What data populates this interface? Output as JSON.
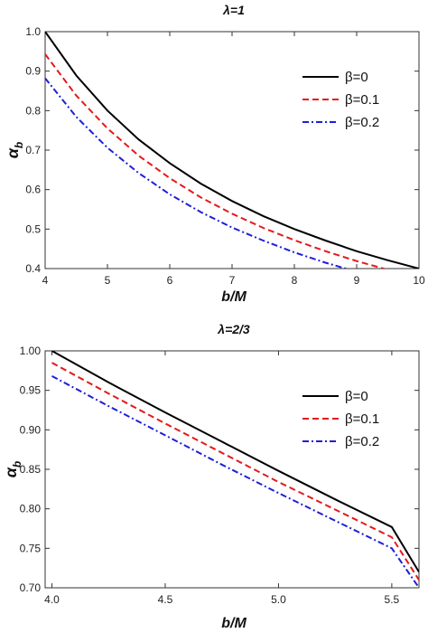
{
  "chart_data": [
    {
      "type": "line",
      "title": "λ=1",
      "xlabel": "b/M",
      "ylabel": "α_b",
      "ylabel_main": "α",
      "ylabel_sub": "b",
      "xlim": [
        4,
        10
      ],
      "ylim": [
        0.4,
        1.0
      ],
      "xticks": [
        4,
        5,
        6,
        7,
        8,
        9,
        10
      ],
      "yticks": [
        0.4,
        0.5,
        0.6,
        0.7,
        0.8,
        0.9,
        1.0
      ],
      "xtick_labels": [
        "4",
        "5",
        "6",
        "7",
        "8",
        "9",
        "10"
      ],
      "ytick_labels": [
        "0.4",
        "0.5",
        "0.6",
        "0.7",
        "0.8",
        "0.9",
        "1.0"
      ],
      "grid": false,
      "legend_position": "top-right",
      "x": [
        4,
        4.5,
        5,
        5.5,
        6,
        6.5,
        7,
        7.5,
        8,
        8.5,
        9,
        9.5,
        10
      ],
      "series": [
        {
          "name": "β=0",
          "color": "#000000",
          "dash": "solid",
          "values": [
            1.0,
            0.889,
            0.8,
            0.727,
            0.667,
            0.615,
            0.571,
            0.533,
            0.5,
            0.471,
            0.444,
            0.421,
            0.4
          ]
        },
        {
          "name": "β=0.1",
          "color": "#e31a1c",
          "dash": "dashed",
          "values": [
            0.943,
            0.838,
            0.755,
            0.686,
            0.629,
            0.58,
            0.539,
            0.503,
            0.472,
            0.444,
            0.419,
            0.397,
            0.377
          ]
        },
        {
          "name": "β=0.2",
          "color": "#1f1fd6",
          "dash": "dashdot",
          "values": [
            0.882,
            0.784,
            0.706,
            0.642,
            0.588,
            0.543,
            0.504,
            0.471,
            0.441,
            0.415,
            0.392,
            0.372,
            0.353
          ]
        }
      ]
    },
    {
      "type": "line",
      "title": "λ=2/3",
      "xlabel": "b/M",
      "ylabel": "α_b",
      "ylabel_main": "α",
      "ylabel_sub": "b",
      "xlim": [
        3.97,
        5.62
      ],
      "ylim": [
        0.7,
        1.0
      ],
      "xticks": [
        4.0,
        4.5,
        5.0,
        5.5
      ],
      "yticks": [
        0.7,
        0.75,
        0.8,
        0.85,
        0.9,
        0.95,
        1.0
      ],
      "xtick_labels": [
        "4.0",
        "4.5",
        "5.0",
        "5.5"
      ],
      "ytick_labels": [
        "0.70",
        "0.75",
        "0.80",
        "0.85",
        "0.90",
        "0.95",
        "1.00"
      ],
      "grid": false,
      "legend_position": "top-right",
      "x": [
        4.0,
        4.25,
        4.5,
        4.75,
        5.0,
        5.25,
        5.5,
        5.62
      ],
      "series": [
        {
          "name": "β=0",
          "color": "#000000",
          "dash": "solid",
          "values": [
            1.0,
            0.96,
            0.922,
            0.885,
            0.848,
            0.812,
            0.777,
            0.72
          ]
        },
        {
          "name": "β=0.1",
          "color": "#e31a1c",
          "dash": "dashed",
          "values": [
            0.985,
            0.946,
            0.908,
            0.871,
            0.834,
            0.799,
            0.764,
            0.71
          ]
        },
        {
          "name": "β=0.2",
          "color": "#1f1fd6",
          "dash": "dashdot",
          "values": [
            0.968,
            0.93,
            0.893,
            0.856,
            0.82,
            0.785,
            0.75,
            0.7
          ]
        }
      ]
    }
  ]
}
